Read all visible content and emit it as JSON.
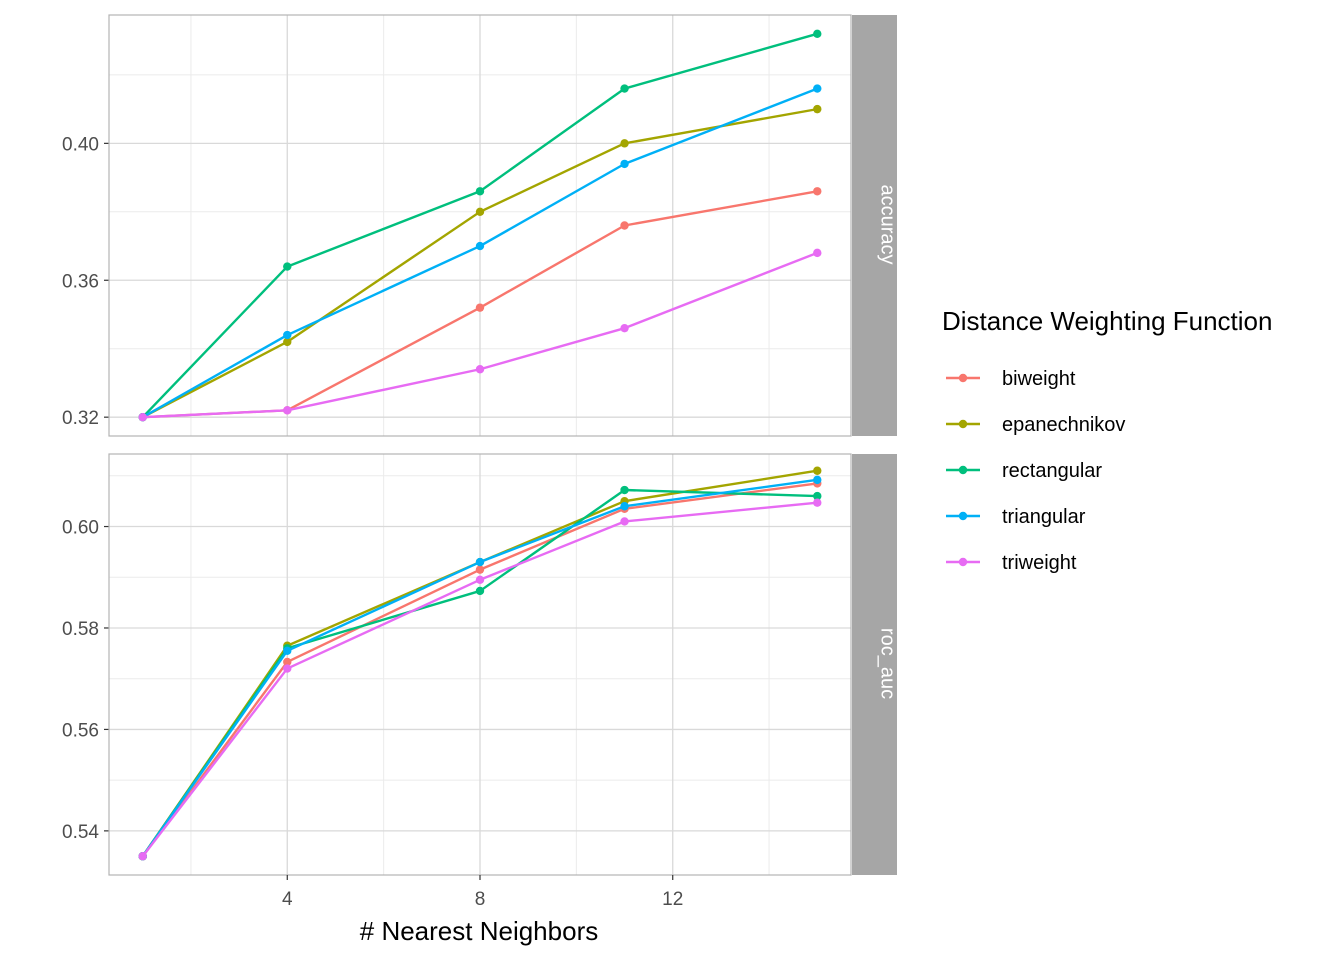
{
  "chart_data": {
    "type": "line",
    "xlabel": "# Nearest Neighbors",
    "x": [
      1,
      4,
      8,
      11,
      15
    ],
    "x_ticks": [
      4,
      8,
      12
    ],
    "xlim": [
      0.3,
      15.7
    ],
    "legend": {
      "title": "Distance Weighting Function",
      "placement": "right"
    },
    "series_colors": {
      "biweight": "#F8766D",
      "epanechnikov": "#A3A500",
      "rectangular": "#00BF7D",
      "triangular": "#00B0F6",
      "triweight": "#E76BF3"
    },
    "series_order": [
      "biweight",
      "epanechnikov",
      "rectangular",
      "triangular",
      "triweight"
    ],
    "panels": [
      {
        "strip": "accuracy",
        "ylim": [
          0.3145,
          0.4375
        ],
        "y_ticks": [
          0.32,
          0.36,
          0.4
        ],
        "y_tick_labels": [
          "0.32",
          "0.36",
          "0.40"
        ],
        "series": [
          {
            "name": "biweight",
            "values": [
              0.32,
              0.322,
              0.352,
              0.376,
              0.386
            ]
          },
          {
            "name": "epanechnikov",
            "values": [
              0.32,
              0.342,
              0.38,
              0.4,
              0.41
            ]
          },
          {
            "name": "rectangular",
            "values": [
              0.32,
              0.364,
              0.386,
              0.416,
              0.432
            ]
          },
          {
            "name": "triangular",
            "values": [
              0.32,
              0.344,
              0.37,
              0.394,
              0.416
            ]
          },
          {
            "name": "triweight",
            "values": [
              0.32,
              0.322,
              0.334,
              0.346,
              0.368
            ]
          }
        ]
      },
      {
        "strip": "roc_auc",
        "ylim": [
          0.5313,
          0.6143
        ],
        "y_ticks": [
          0.54,
          0.56,
          0.58,
          0.6
        ],
        "y_tick_labels": [
          "0.54",
          "0.56",
          "0.58",
          "0.60"
        ],
        "series": [
          {
            "name": "biweight",
            "values": [
              0.535,
              0.5733,
              0.5915,
              0.6035,
              0.6085
            ]
          },
          {
            "name": "epanechnikov",
            "values": [
              0.535,
              0.5765,
              0.593,
              0.605,
              0.611
            ]
          },
          {
            "name": "rectangular",
            "values": [
              0.535,
              0.576,
              0.5873,
              0.6072,
              0.606
            ]
          },
          {
            "name": "triangular",
            "values": [
              0.535,
              0.5755,
              0.593,
              0.604,
              0.6092
            ]
          },
          {
            "name": "triweight",
            "values": [
              0.535,
              0.572,
              0.5895,
              0.601,
              0.6047
            ]
          }
        ]
      }
    ]
  }
}
